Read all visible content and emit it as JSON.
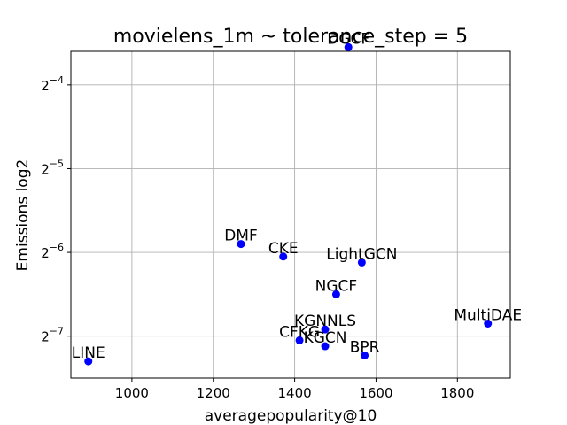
{
  "chart_data": {
    "type": "scatter",
    "title": "movielens_1m ~ tolerance_step = 5",
    "xlabel": "averagepopularity@10",
    "ylabel": "Emissions log2",
    "y_scale": "log2",
    "xlim": [
      850,
      1930
    ],
    "ylim_log2": [
      -7.5,
      -3.6
    ],
    "xticks": [
      1000,
      1200,
      1400,
      1600,
      1800
    ],
    "yticks": [
      {
        "exp": -4,
        "base": "2",
        "sup": "−4"
      },
      {
        "exp": -5,
        "base": "2",
        "sup": "−5"
      },
      {
        "exp": -6,
        "base": "2",
        "sup": "−6"
      },
      {
        "exp": -7,
        "base": "2",
        "sup": "−7"
      }
    ],
    "grid": true,
    "marker_color": "#0000ff",
    "points": [
      {
        "label": "DGCF",
        "x": 1532,
        "log2y": -3.55
      },
      {
        "label": "DMF",
        "x": 1268,
        "log2y": -5.9
      },
      {
        "label": "CKE",
        "x": 1372,
        "log2y": -6.05
      },
      {
        "label": "LightGCN",
        "x": 1565,
        "log2y": -6.12
      },
      {
        "label": "NGCF",
        "x": 1502,
        "log2y": -6.5
      },
      {
        "label": "MultiDAE",
        "x": 1875,
        "log2y": -6.85
      },
      {
        "label": "KGNNLS",
        "x": 1475,
        "log2y": -6.92
      },
      {
        "label": "CFKG",
        "x": 1412,
        "log2y": -7.05
      },
      {
        "label": "KGCN",
        "x": 1475,
        "log2y": -7.12
      },
      {
        "label": "BPR",
        "x": 1572,
        "log2y": -7.23
      },
      {
        "label": "LINE",
        "x": 893,
        "log2y": -7.3
      }
    ]
  }
}
